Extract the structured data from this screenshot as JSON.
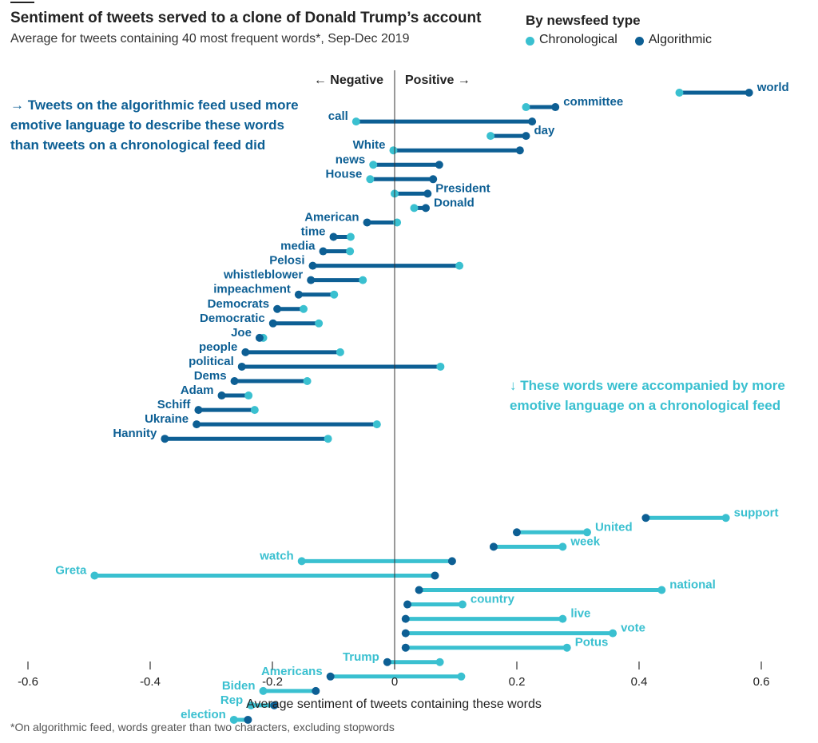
{
  "header": {
    "title": "Sentiment of tweets served to a clone of Donald Trump’s account",
    "subtitle": "Average for tweets containing 40 most frequent words*, Sep-Dec 2019"
  },
  "legend": {
    "title": "By newsfeed type",
    "chronological": "Chronological",
    "algorithmic": "Algorithmic"
  },
  "annotations": {
    "negative": "← Negative",
    "positive": "Positive →",
    "algorithmic_note": [
      "→ Tweets on the algorithmic feed used more",
      "emotive language to describe these words",
      "than tweets on a chronological feed did"
    ],
    "chronological_note": [
      "↓ These words were accompanied by more",
      "emotive language on a chronological feed"
    ]
  },
  "footnote": "*On algorithmic feed, words greater than two characters, excluding stopwords",
  "colors": {
    "chronological": "#3ac0d0",
    "algorithmic": "#0d5f94",
    "axis": "#333333"
  },
  "chart_data": {
    "type": "dumbbell",
    "xlabel": "Average sentiment of tweets containing these words",
    "xlim": [
      -0.6,
      0.6
    ],
    "xticks": [
      -0.6,
      -0.4,
      -0.2,
      0,
      0.2,
      0.4,
      0.6
    ],
    "xtick_labels": [
      "-0.6",
      "-0.4",
      "-0.2",
      "0",
      "0.2",
      "0.4",
      "0.6"
    ],
    "grid": false,
    "legend_position": "top-right",
    "rows": [
      {
        "word": "world",
        "chronological": 0.466,
        "algorithmic": 0.58,
        "group": "algorithmic"
      },
      {
        "word": "committee",
        "chronological": 0.215,
        "algorithmic": 0.263,
        "group": "algorithmic"
      },
      {
        "word": "call",
        "chronological": -0.063,
        "algorithmic": 0.225,
        "group": "algorithmic"
      },
      {
        "word": "day",
        "chronological": 0.157,
        "algorithmic": 0.215,
        "group": "algorithmic"
      },
      {
        "word": "White",
        "chronological": -0.002,
        "algorithmic": 0.205,
        "group": "algorithmic"
      },
      {
        "word": "news",
        "chronological": -0.035,
        "algorithmic": 0.073,
        "group": "algorithmic"
      },
      {
        "word": "House",
        "chronological": -0.04,
        "algorithmic": 0.063,
        "group": "algorithmic"
      },
      {
        "word": "President",
        "chronological": 0.0,
        "algorithmic": 0.054,
        "group": "algorithmic"
      },
      {
        "word": "Donald",
        "chronological": 0.032,
        "algorithmic": 0.051,
        "group": "algorithmic"
      },
      {
        "word": "American",
        "chronological": 0.004,
        "algorithmic": -0.045,
        "group": "algorithmic"
      },
      {
        "word": "time",
        "chronological": -0.072,
        "algorithmic": -0.1,
        "group": "algorithmic"
      },
      {
        "word": "media",
        "chronological": -0.073,
        "algorithmic": -0.117,
        "group": "algorithmic"
      },
      {
        "word": "Pelosi",
        "chronological": 0.106,
        "algorithmic": -0.134,
        "group": "algorithmic"
      },
      {
        "word": "whistleblower",
        "chronological": -0.052,
        "algorithmic": -0.137,
        "group": "algorithmic"
      },
      {
        "word": "impeachment",
        "chronological": -0.099,
        "algorithmic": -0.157,
        "group": "algorithmic"
      },
      {
        "word": "Democrats",
        "chronological": -0.149,
        "algorithmic": -0.192,
        "group": "algorithmic"
      },
      {
        "word": "Democratic",
        "chronological": -0.124,
        "algorithmic": -0.199,
        "group": "algorithmic"
      },
      {
        "word": "Joe",
        "chronological": -0.215,
        "algorithmic": -0.221,
        "group": "algorithmic"
      },
      {
        "word": "people",
        "chronological": -0.089,
        "algorithmic": -0.244,
        "group": "algorithmic"
      },
      {
        "word": "political",
        "chronological": 0.075,
        "algorithmic": -0.25,
        "group": "algorithmic"
      },
      {
        "word": "Dems",
        "chronological": -0.143,
        "algorithmic": -0.262,
        "group": "algorithmic"
      },
      {
        "word": "Adam",
        "chronological": -0.239,
        "algorithmic": -0.283,
        "group": "algorithmic"
      },
      {
        "word": "Schiff",
        "chronological": -0.229,
        "algorithmic": -0.321,
        "group": "algorithmic"
      },
      {
        "word": "Ukraine",
        "chronological": -0.029,
        "algorithmic": -0.324,
        "group": "algorithmic"
      },
      {
        "word": "Hannity",
        "chronological": -0.109,
        "algorithmic": -0.376,
        "group": "algorithmic"
      },
      {
        "word": "support",
        "chronological": 0.542,
        "algorithmic": 0.411,
        "group": "chronological"
      },
      {
        "word": "United",
        "chronological": 0.315,
        "algorithmic": 0.2,
        "group": "chronological"
      },
      {
        "word": "week",
        "chronological": 0.275,
        "algorithmic": 0.162,
        "group": "chronological"
      },
      {
        "word": "watch",
        "chronological": -0.152,
        "algorithmic": 0.094,
        "group": "chronological"
      },
      {
        "word": "Greta",
        "chronological": -0.491,
        "algorithmic": 0.066,
        "group": "chronological"
      },
      {
        "word": "national",
        "chronological": 0.437,
        "algorithmic": 0.04,
        "group": "chronological"
      },
      {
        "word": "country",
        "chronological": 0.111,
        "algorithmic": 0.021,
        "group": "chronological"
      },
      {
        "word": "live",
        "chronological": 0.275,
        "algorithmic": 0.018,
        "group": "chronological"
      },
      {
        "word": "vote",
        "chronological": 0.357,
        "algorithmic": 0.018,
        "group": "chronological"
      },
      {
        "word": "Potus",
        "chronological": 0.282,
        "algorithmic": 0.018,
        "group": "chronological"
      },
      {
        "word": "Trump",
        "chronological": 0.074,
        "algorithmic": -0.012,
        "group": "chronological"
      },
      {
        "word": "Americans",
        "chronological": 0.109,
        "algorithmic": -0.105,
        "group": "chronological"
      },
      {
        "word": "Biden",
        "chronological": -0.215,
        "algorithmic": -0.129,
        "group": "chronological"
      },
      {
        "word": "Rep",
        "chronological": -0.235,
        "algorithmic": -0.197,
        "group": "chronological"
      },
      {
        "word": "election",
        "chronological": -0.263,
        "algorithmic": -0.24,
        "group": "chronological"
      }
    ]
  }
}
